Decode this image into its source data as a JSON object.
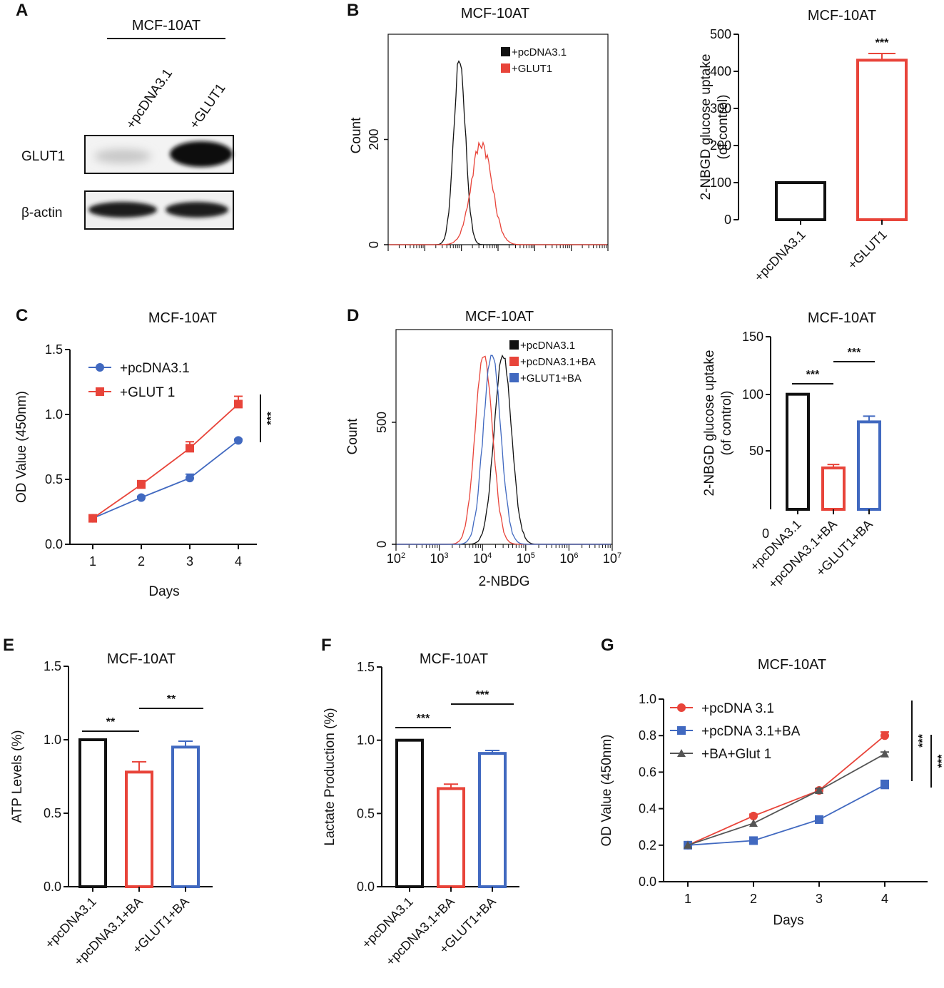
{
  "panel_labels": {
    "A": "A",
    "B": "B",
    "C": "C",
    "D": "D",
    "E": "E",
    "F": "F",
    "G": "G"
  },
  "colors": {
    "black": "#111111",
    "red": "#e8443a",
    "blue": "#4169c0",
    "gray": "#555555"
  },
  "blot": {
    "title": "MCF-10AT",
    "lanes": [
      "+pcDNA3.1",
      "+GLUT1"
    ],
    "rows": [
      "GLUT1",
      "β-actin"
    ]
  },
  "chart_data": [
    {
      "id": "B_hist",
      "type": "histogram",
      "title": "MCF-10AT",
      "ylabel": "Count",
      "yticks": [
        "0",
        "200"
      ],
      "legend": [
        "+pcDNA3.1",
        "+GLUT1"
      ],
      "series": [
        {
          "name": "+pcDNA3.1",
          "color": "black",
          "peak_log10": 3.95,
          "width": 0.16,
          "peak_count": 355
        },
        {
          "name": "+GLUT1",
          "color": "red",
          "peak_log10": 4.55,
          "width": 0.28,
          "peak_count": 195
        }
      ]
    },
    {
      "id": "B_bar",
      "type": "bar",
      "title": "MCF-10AT",
      "ylabel": [
        "2-NBGD glucose uptake",
        "(of control)"
      ],
      "ylim": [
        0,
        500
      ],
      "yticks": [
        "0",
        "100",
        "200",
        "300",
        "400",
        "500"
      ],
      "categories": [
        "+pcDNA3.1",
        "+GLUT1"
      ],
      "values": [
        100,
        430
      ],
      "errors": [
        0,
        18
      ],
      "colors": [
        "black",
        "red"
      ],
      "significance": [
        {
          "label": "***",
          "over": 1
        }
      ]
    },
    {
      "id": "C_line",
      "type": "line",
      "title": "MCF-10AT",
      "xlabel": "Days",
      "ylabel": "OD Value (450nm)",
      "x": [
        1,
        2,
        3,
        4
      ],
      "xticks": [
        "1",
        "2",
        "3",
        "4"
      ],
      "ylim": [
        0,
        1.5
      ],
      "yticks": [
        "0.0",
        "0.5",
        "1.0",
        "1.5"
      ],
      "series": [
        {
          "name": "+pcDNA3.1",
          "color": "blue",
          "marker": "circle",
          "values": [
            0.2,
            0.36,
            0.51,
            0.8
          ],
          "errors": [
            0.01,
            0.01,
            0.03,
            0.01
          ]
        },
        {
          "name": "+GLUT 1",
          "color": "red",
          "marker": "square",
          "values": [
            0.2,
            0.46,
            0.74,
            1.08
          ],
          "errors": [
            0.01,
            0.03,
            0.05,
            0.06
          ]
        }
      ],
      "significance": [
        "***"
      ]
    },
    {
      "id": "D_hist",
      "type": "histogram",
      "title": "MCF-10AT",
      "ylabel": "Count",
      "xlabel": "2-NBDG",
      "yticks": [
        "0",
        "500"
      ],
      "xticks": [
        {
          "b": "10",
          "e": "2"
        },
        {
          "b": "10",
          "e": "3"
        },
        {
          "b": "10",
          "e": "4"
        },
        {
          "b": "10",
          "e": "5"
        },
        {
          "b": "10",
          "e": "6"
        },
        {
          "b": "10",
          "e": "7"
        }
      ],
      "legend": [
        "+pcDNA3.1",
        "+pcDNA3.1+BA",
        "+GLUT1+BA"
      ],
      "series": [
        {
          "name": "+pcDNA3.1",
          "color": "black",
          "peak_log10": 4.47,
          "width": 0.2,
          "peak_count": 780
        },
        {
          "name": "+pcDNA3.1+BA",
          "color": "red",
          "peak_log10": 4.03,
          "width": 0.2,
          "peak_count": 780
        },
        {
          "name": "+GLUT1+BA",
          "color": "blue",
          "peak_log10": 4.22,
          "width": 0.2,
          "peak_count": 785
        }
      ]
    },
    {
      "id": "D_bar",
      "type": "bar",
      "title": "MCF-10AT",
      "ylabel": [
        "2-NBGD glucose uptake",
        "(of control)"
      ],
      "ylim": [
        0,
        150
      ],
      "yticks": [
        "0",
        "50",
        "100",
        "150"
      ],
      "categories": [
        "+pcDNA3.1",
        "+pcDNA3.1+BA",
        "+GLUT1+BA"
      ],
      "values": [
        100,
        36,
        76
      ],
      "errors": [
        0,
        3,
        5
      ],
      "colors": [
        "black",
        "red",
        "blue"
      ],
      "significance": [
        {
          "label": "***",
          "from": 0,
          "to": 1
        },
        {
          "label": "***",
          "from": 1,
          "to": 2
        }
      ]
    },
    {
      "id": "E_bar",
      "type": "bar",
      "title": "MCF-10AT",
      "ylabel": [
        "ATP Levels (%)"
      ],
      "ylim": [
        0,
        1.5
      ],
      "yticks": [
        "0.0",
        "0.5",
        "1.0",
        "1.5"
      ],
      "categories": [
        "+pcDNA3.1",
        "+pcDNA3.1+BA",
        "+GLUT1+BA"
      ],
      "values": [
        1.0,
        0.78,
        0.95
      ],
      "errors": [
        0,
        0.07,
        0.04
      ],
      "colors": [
        "black",
        "red",
        "blue"
      ],
      "significance": [
        {
          "label": "**",
          "from": 0,
          "to": 1
        },
        {
          "label": "**",
          "from": 1,
          "to": 2
        }
      ]
    },
    {
      "id": "F_bar",
      "type": "bar",
      "title": "MCF-10AT",
      "ylabel": [
        "Lactate Production (%)"
      ],
      "ylim": [
        0,
        1.5
      ],
      "yticks": [
        "0.0",
        "0.5",
        "1.0",
        "1.5"
      ],
      "categories": [
        "+pcDNA3.1",
        "+pcDNA3.1+BA",
        "+GLUT1+BA"
      ],
      "values": [
        1.0,
        0.67,
        0.91
      ],
      "errors": [
        0,
        0.03,
        0.02
      ],
      "colors": [
        "black",
        "red",
        "blue"
      ],
      "significance": [
        {
          "label": "***",
          "from": 0,
          "to": 1
        },
        {
          "label": "***",
          "from": 1,
          "to": 2
        }
      ]
    },
    {
      "id": "G_line",
      "type": "line",
      "title": "MCF-10AT",
      "xlabel": "Days",
      "ylabel": "OD Value (450nm)",
      "x": [
        1,
        2,
        3,
        4
      ],
      "xticks": [
        "1",
        "2",
        "3",
        "4"
      ],
      "ylim": [
        0,
        1.0
      ],
      "yticks": [
        "0.0",
        "0.2",
        "0.4",
        "0.6",
        "0.8",
        "1.0"
      ],
      "series": [
        {
          "name": "+pcDNA 3.1",
          "color": "red",
          "marker": "circle",
          "values": [
            0.2,
            0.36,
            0.5,
            0.8
          ],
          "errors": [
            0.005,
            0.01,
            0.01,
            0.02
          ]
        },
        {
          "name": "+pcDNA 3.1+BA",
          "color": "blue",
          "marker": "square",
          "values": [
            0.2,
            0.225,
            0.34,
            0.53
          ],
          "errors": [
            0.005,
            0.01,
            0.02,
            0.025
          ]
        },
        {
          "name": "+BA+Glut 1",
          "color": "gray",
          "marker": "triangle",
          "values": [
            0.2,
            0.32,
            0.5,
            0.7
          ],
          "errors": [
            0.005,
            0.005,
            0.01,
            0.01
          ]
        }
      ],
      "significance": [
        "***",
        "***"
      ]
    }
  ]
}
